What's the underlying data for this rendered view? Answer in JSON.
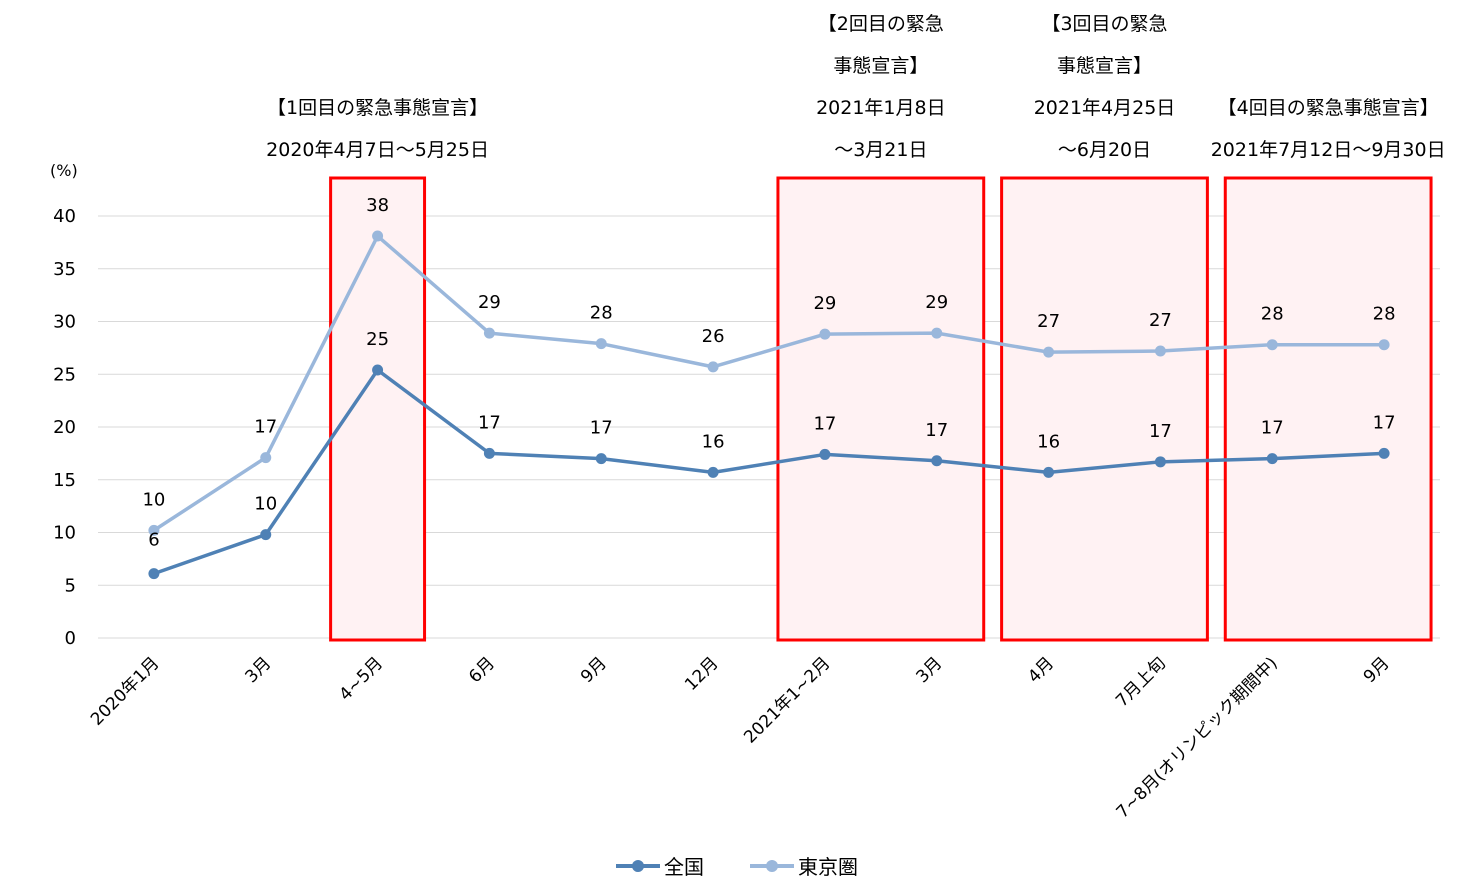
{
  "chart_data": {
    "type": "line",
    "y_unit": "(%)",
    "ylim": [
      0,
      40
    ],
    "y_ticks": [
      0,
      5,
      10,
      15,
      20,
      25,
      30,
      35,
      40
    ],
    "grid": true,
    "categories": [
      "2020年1月",
      "3月",
      "4~5月",
      "6月",
      "9月",
      "12月",
      "2021年1~2月",
      "3月",
      "4月",
      "7月上旬",
      "7~8月(オリンピック期間中)",
      "9月"
    ],
    "series": [
      {
        "name": "全国",
        "color": "#4f81b5",
        "values": [
          6.1,
          9.8,
          25.4,
          17.5,
          17.0,
          15.7,
          17.4,
          16.8,
          15.7,
          16.7,
          17.0,
          17.5
        ],
        "labels": [
          "6",
          "10",
          "25",
          "17",
          "17",
          "16",
          "17",
          "17",
          "16",
          "17",
          "17",
          "17"
        ]
      },
      {
        "name": "東京圏",
        "color": "#9ab7db",
        "values": [
          10.2,
          17.1,
          38.1,
          28.9,
          27.9,
          25.7,
          28.8,
          28.9,
          27.1,
          27.2,
          27.8,
          27.8
        ],
        "labels": [
          "10",
          "17",
          "38",
          "29",
          "28",
          "26",
          "29",
          "29",
          "27",
          "27",
          "28",
          "28"
        ]
      }
    ],
    "highlights": [
      {
        "from": 2,
        "to": 2,
        "lines": [
          "【1回目の緊急事態宣言】",
          "2020年4月7日～5月25日"
        ]
      },
      {
        "from": 6,
        "to": 7,
        "lines": [
          "【2回目の緊急",
          "事態宣言】",
          "2021年1月8日",
          "～3月21日"
        ]
      },
      {
        "from": 8,
        "to": 9,
        "lines": [
          "【3回目の緊急",
          "事態宣言】",
          "2021年4月25日",
          "～6月20日"
        ]
      },
      {
        "from": 10,
        "to": 11,
        "lines": [
          "【4回目の緊急事態宣言】",
          "2021年7月12日～9月30日"
        ]
      }
    ],
    "highlight_color": "#ff0000",
    "legend_position": "bottom"
  }
}
